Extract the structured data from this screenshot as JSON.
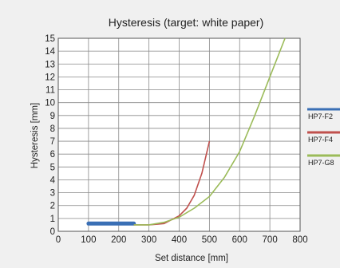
{
  "chart_data": {
    "type": "line",
    "title": "Hysteresis (target: white paper)",
    "xlabel": "Set distance [mm]",
    "ylabel": "Hysteresis [mm]",
    "xlim": [
      0,
      800
    ],
    "ylim": [
      0,
      15
    ],
    "x_ticks": [
      "0",
      "100",
      "200",
      "300",
      "400",
      "500",
      "600",
      "700",
      "800"
    ],
    "y_ticks": [
      "0",
      "1",
      "2",
      "3",
      "4",
      "5",
      "6",
      "7",
      "8",
      "9",
      "10",
      "11",
      "12",
      "13",
      "14",
      "15"
    ],
    "grid": true,
    "legend_position": "right",
    "series": [
      {
        "name": "HP7-F2",
        "color": "#3a6fb5",
        "x": [
          100,
          150,
          200,
          250
        ],
        "y": [
          0.6,
          0.6,
          0.6,
          0.6
        ]
      },
      {
        "name": "HP7-F4",
        "color": "#c0504d",
        "x": [
          250,
          300,
          350,
          400,
          425,
          450,
          475,
          500
        ],
        "y": [
          0.5,
          0.5,
          0.6,
          1.2,
          1.8,
          2.8,
          4.5,
          7.0
        ]
      },
      {
        "name": "HP7-G8",
        "color": "#9bbb59",
        "x": [
          250,
          300,
          350,
          400,
          450,
          500,
          550,
          600,
          650,
          700,
          750
        ],
        "y": [
          0.5,
          0.5,
          0.7,
          1.1,
          1.8,
          2.7,
          4.2,
          6.2,
          9.0,
          12.0,
          15.0
        ]
      }
    ]
  }
}
